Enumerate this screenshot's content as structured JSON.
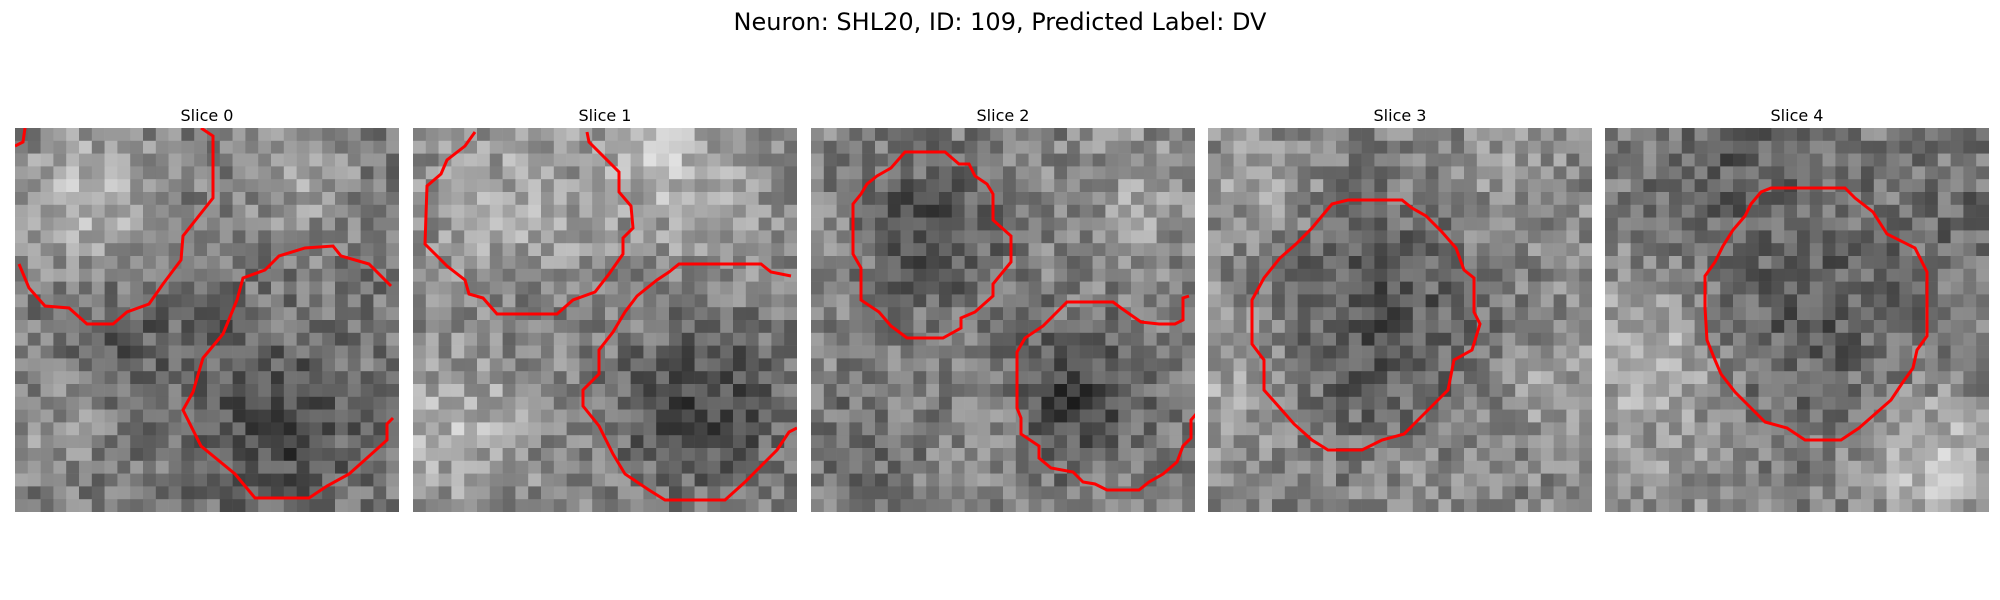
{
  "figure": {
    "title": "Neuron: SHL20, ID: 109, Predicted Label: DV"
  },
  "panels": [
    {
      "title": "Slice 0"
    },
    {
      "title": "Slice 1"
    },
    {
      "title": "Slice 2"
    },
    {
      "title": "Slice 3"
    },
    {
      "title": "Slice 4"
    }
  ],
  "colors": {
    "contour": "#ff0000",
    "background": "#ffffff"
  }
}
